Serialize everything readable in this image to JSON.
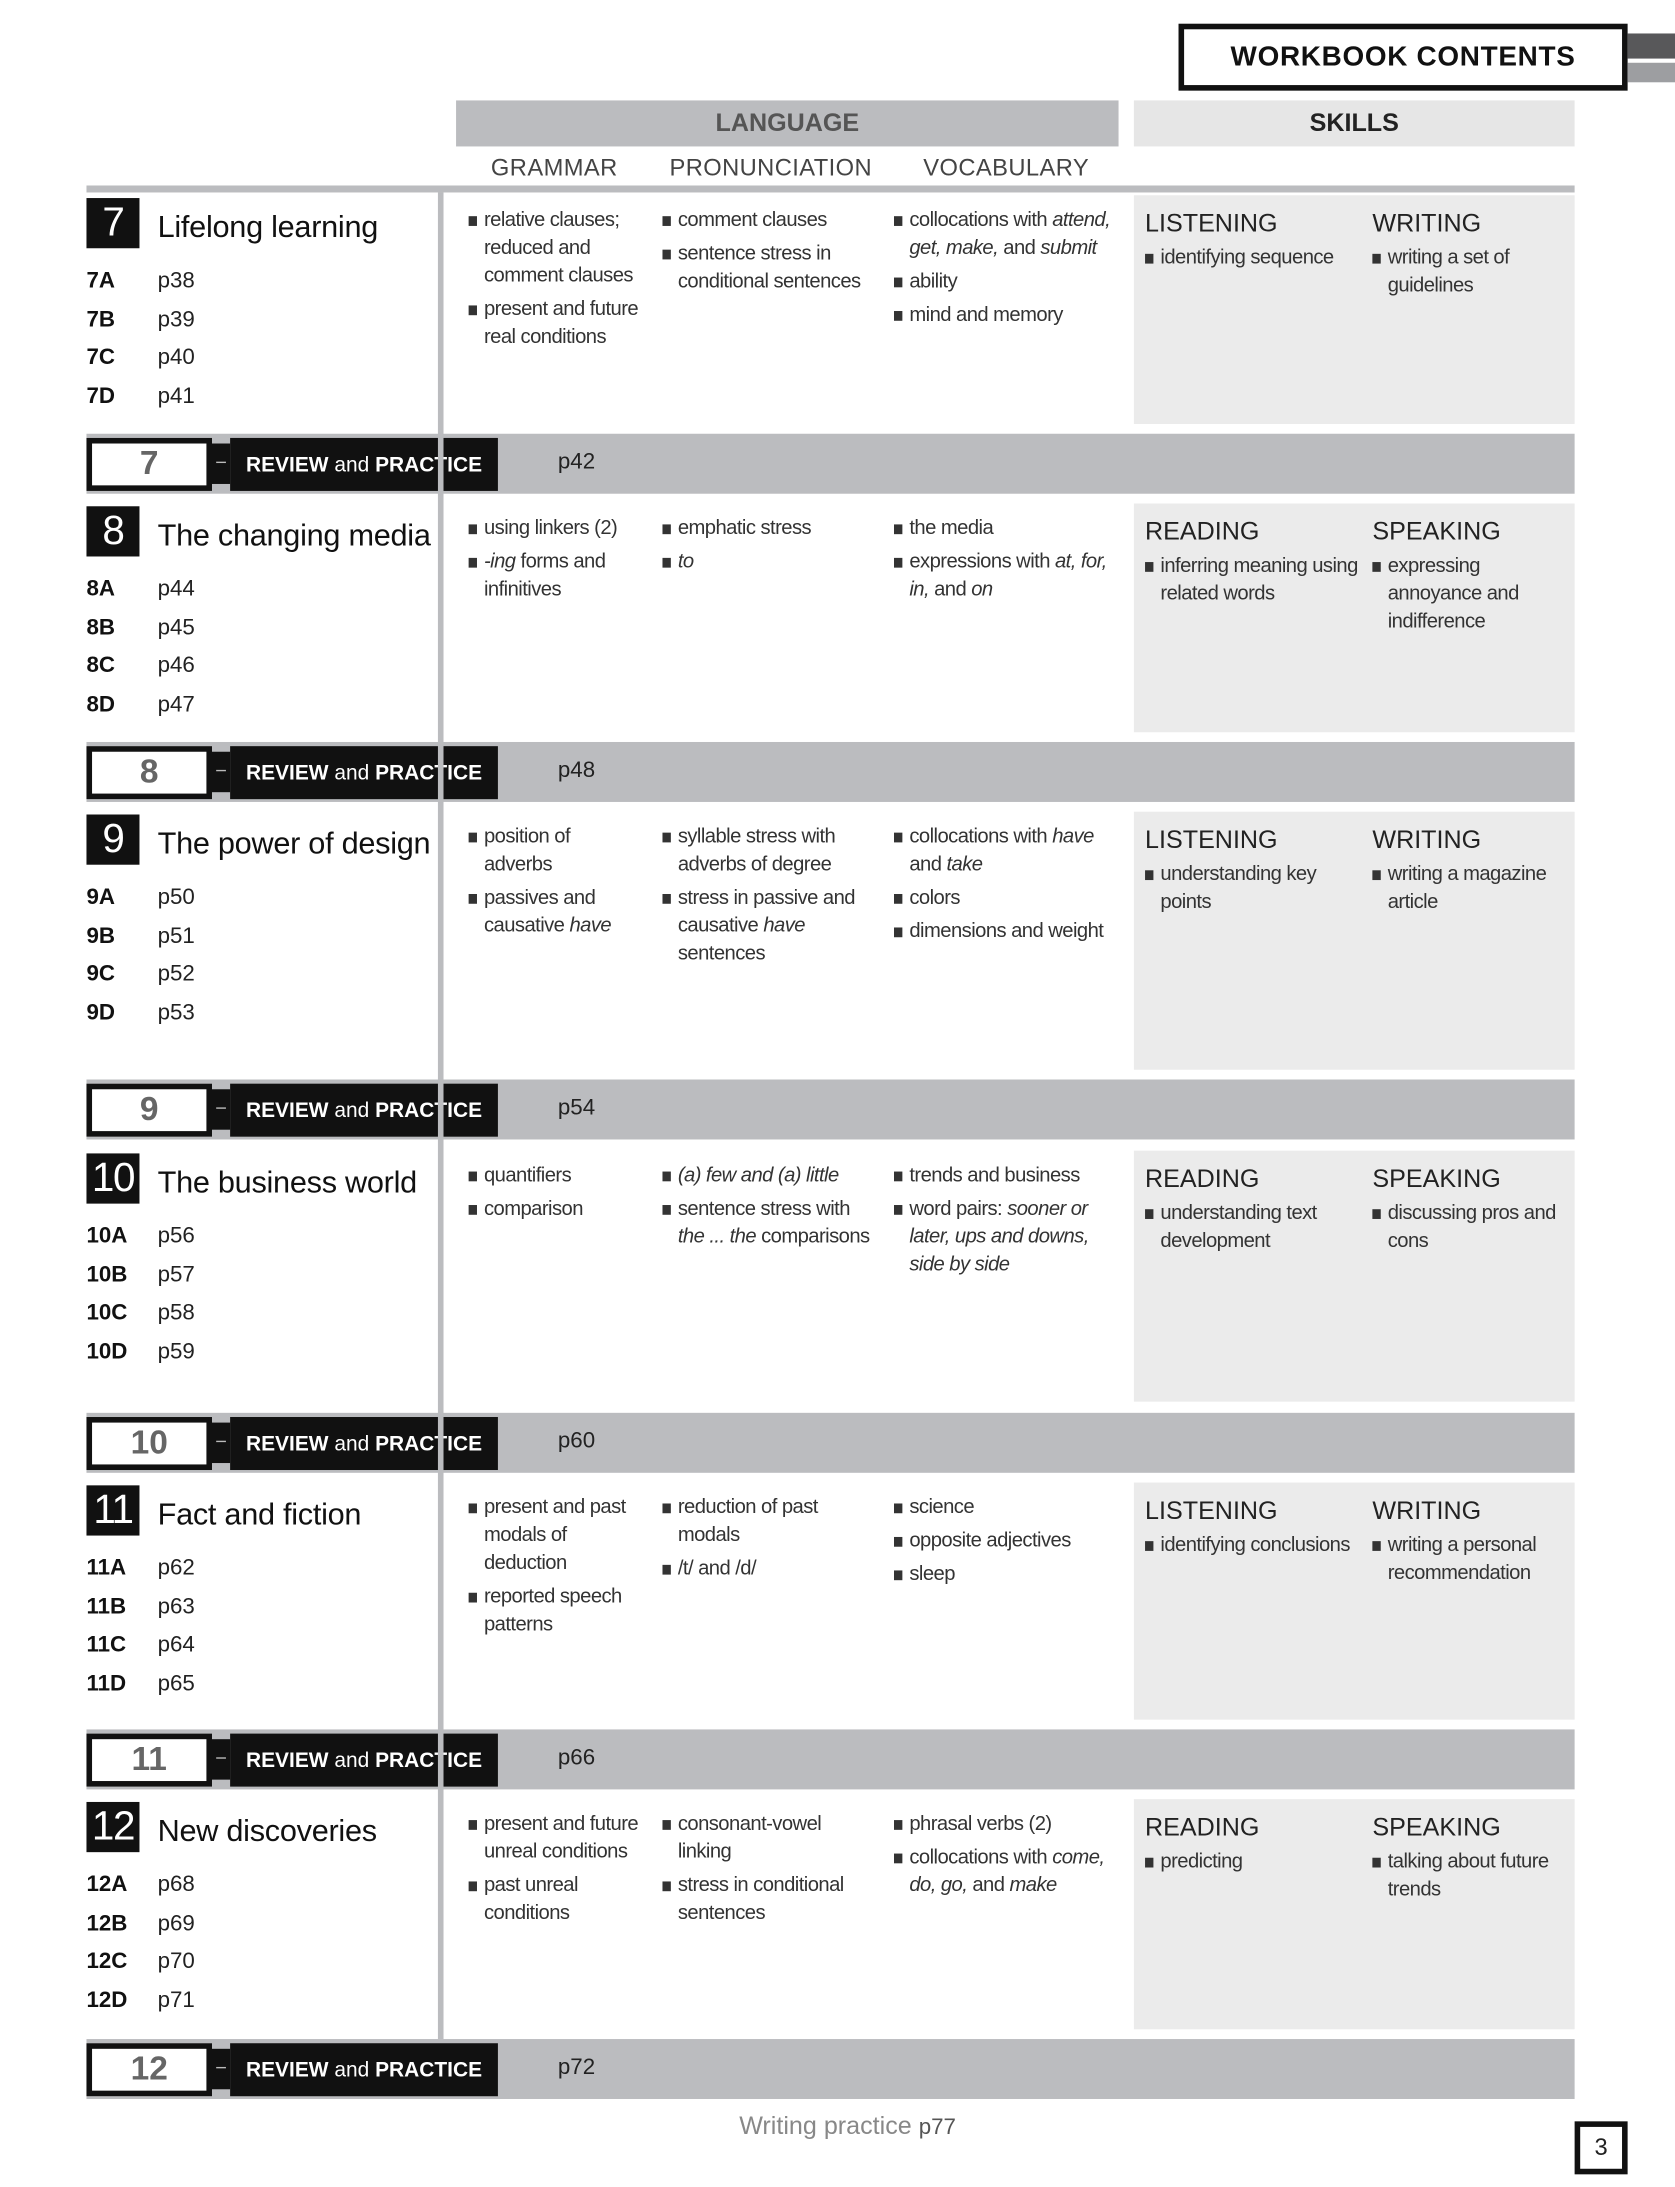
{
  "header": {
    "title": "WORKBOOK CONTENTS",
    "language": "LANGUAGE",
    "skills": "SKILLS",
    "grammar": "GRAMMAR",
    "pronunciation": "PRONUNCIATION",
    "vocabulary": "VOCABULARY"
  },
  "review_label": {
    "review": "REVIEW",
    "and": "and",
    "practice": "PRACTICE"
  },
  "units": [
    {
      "num": "7",
      "title": "Lifelong learning",
      "lessons": [
        [
          "7A",
          "p38"
        ],
        [
          "7B",
          "p39"
        ],
        [
          "7C",
          "p40"
        ],
        [
          "7D",
          "p41"
        ]
      ],
      "grammar": [
        [
          [
            "relative clauses; reduced and comment clauses",
            0
          ]
        ],
        [
          [
            "present and future real conditions",
            0
          ]
        ]
      ],
      "pronunciation": [
        [
          [
            "comment clauses",
            0
          ]
        ],
        [
          [
            "sentence stress in conditional sentences",
            0
          ]
        ]
      ],
      "vocabulary": [
        [
          [
            "collocations with ",
            0
          ],
          [
            "attend, get, make,",
            1
          ],
          [
            " and ",
            0
          ],
          [
            "submit",
            1
          ]
        ],
        [
          [
            "ability",
            0
          ]
        ],
        [
          [
            "mind and memory",
            0
          ]
        ]
      ],
      "skill1": {
        "heading": "LISTENING",
        "items": [
          "identifying sequence"
        ]
      },
      "skill2": {
        "heading": "WRITING",
        "items": [
          "writing a set of guidelines"
        ]
      },
      "review_page": "p42"
    },
    {
      "num": "8",
      "title": "The changing media",
      "lessons": [
        [
          "8A",
          "p44"
        ],
        [
          "8B",
          "p45"
        ],
        [
          "8C",
          "p46"
        ],
        [
          "8D",
          "p47"
        ]
      ],
      "grammar": [
        [
          [
            "using linkers (2)",
            0
          ]
        ],
        [
          [
            "-ing",
            1
          ],
          [
            " forms and infinitives",
            0
          ]
        ]
      ],
      "pronunciation": [
        [
          [
            "emphatic stress",
            0
          ]
        ],
        [
          [
            "to",
            1
          ]
        ]
      ],
      "vocabulary": [
        [
          [
            "the media",
            0
          ]
        ],
        [
          [
            "expressions with ",
            0
          ],
          [
            "at, for, in,",
            1
          ],
          [
            " and ",
            0
          ],
          [
            "on",
            1
          ]
        ]
      ],
      "skill1": {
        "heading": "READING",
        "items": [
          "inferring meaning using related words"
        ]
      },
      "skill2": {
        "heading": "SPEAKING",
        "items": [
          "expressing annoyance and indifference"
        ]
      },
      "review_page": "p48"
    },
    {
      "num": "9",
      "title": "The power of design",
      "lessons": [
        [
          "9A",
          "p50"
        ],
        [
          "9B",
          "p51"
        ],
        [
          "9C",
          "p52"
        ],
        [
          "9D",
          "p53"
        ]
      ],
      "grammar": [
        [
          [
            "position of adverbs",
            0
          ]
        ],
        [
          [
            "passives and causative ",
            0
          ],
          [
            "have",
            1
          ]
        ]
      ],
      "pronunciation": [
        [
          [
            "syllable stress with adverbs of degree",
            0
          ]
        ],
        [
          [
            "stress in passive and causative ",
            0
          ],
          [
            "have",
            1
          ],
          [
            " sentences",
            0
          ]
        ]
      ],
      "vocabulary": [
        [
          [
            "collocations with ",
            0
          ],
          [
            "have",
            1
          ],
          [
            " and ",
            0
          ],
          [
            "take",
            1
          ]
        ],
        [
          [
            "colors",
            0
          ]
        ],
        [
          [
            "dimensions and weight",
            0
          ]
        ]
      ],
      "skill1": {
        "heading": "LISTENING",
        "items": [
          "understanding key points"
        ]
      },
      "skill2": {
        "heading": "WRITING",
        "items": [
          "writing a magazine article"
        ]
      },
      "review_page": "p54"
    },
    {
      "num": "10",
      "title": "The business world",
      "lessons": [
        [
          "10A",
          "p56"
        ],
        [
          "10B",
          "p57"
        ],
        [
          "10C",
          "p58"
        ],
        [
          "10D",
          "p59"
        ]
      ],
      "grammar": [
        [
          [
            "quantifiers",
            0
          ]
        ],
        [
          [
            "comparison",
            0
          ]
        ]
      ],
      "pronunciation": [
        [
          [
            "(a) few and (a) little",
            1
          ]
        ],
        [
          [
            "sentence stress with ",
            0
          ],
          [
            "the ... the",
            1
          ],
          [
            " comparisons",
            0
          ]
        ]
      ],
      "vocabulary": [
        [
          [
            "trends and business",
            0
          ]
        ],
        [
          [
            "word pairs: ",
            0
          ],
          [
            "sooner or later, ups and downs, side by side",
            1
          ]
        ]
      ],
      "skill1": {
        "heading": "READING",
        "items": [
          "understanding text development"
        ]
      },
      "skill2": {
        "heading": "SPEAKING",
        "items": [
          "discussing pros and cons"
        ]
      },
      "review_page": "p60"
    },
    {
      "num": "11",
      "title": "Fact and fiction",
      "lessons": [
        [
          "11A",
          "p62"
        ],
        [
          "11B",
          "p63"
        ],
        [
          "11C",
          "p64"
        ],
        [
          "11D",
          "p65"
        ]
      ],
      "grammar": [
        [
          [
            "present and past modals of deduction",
            0
          ]
        ],
        [
          [
            "reported speech patterns",
            0
          ]
        ]
      ],
      "pronunciation": [
        [
          [
            "reduction of past modals",
            0
          ]
        ],
        [
          [
            "/t/ and /d/",
            0
          ]
        ]
      ],
      "vocabulary": [
        [
          [
            "science",
            0
          ]
        ],
        [
          [
            "opposite adjectives",
            0
          ]
        ],
        [
          [
            "sleep",
            0
          ]
        ]
      ],
      "skill1": {
        "heading": "LISTENING",
        "items": [
          "identifying conclusions"
        ]
      },
      "skill2": {
        "heading": "WRITING",
        "items": [
          "writing a personal recommendation"
        ]
      },
      "review_page": "p66"
    },
    {
      "num": "12",
      "title": "New discoveries",
      "lessons": [
        [
          "12A",
          "p68"
        ],
        [
          "12B",
          "p69"
        ],
        [
          "12C",
          "p70"
        ],
        [
          "12D",
          "p71"
        ]
      ],
      "grammar": [
        [
          [
            "present and future unreal conditions",
            0
          ]
        ],
        [
          [
            "past unreal conditions",
            0
          ]
        ]
      ],
      "pronunciation": [
        [
          [
            "consonant-vowel linking",
            0
          ]
        ],
        [
          [
            "stress in conditional sentences",
            0
          ]
        ]
      ],
      "vocabulary": [
        [
          [
            "phrasal verbs (2)",
            0
          ]
        ],
        [
          [
            "collocations with ",
            0
          ],
          [
            "come, do, go,",
            1
          ],
          [
            " and ",
            0
          ],
          [
            "make",
            1
          ]
        ]
      ],
      "skill1": {
        "heading": "READING",
        "items": [
          "predicting"
        ]
      },
      "skill2": {
        "heading": "SPEAKING",
        "items": [
          "talking about future trends"
        ]
      },
      "review_page": "p72"
    }
  ],
  "footer": {
    "text": "Writing practice",
    "page": "p77"
  },
  "page_number": "3",
  "colors": {
    "header_gray": "#bbbcbf",
    "skills_bg": "#ebebeb",
    "black": "#111111"
  }
}
